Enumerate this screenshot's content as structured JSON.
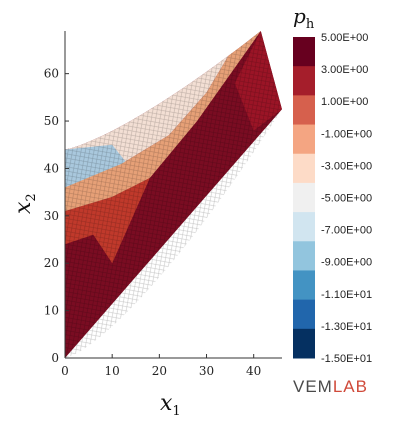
{
  "chart_data": {
    "type": "heatmap",
    "xlabel": "x",
    "xlabel_sub": "1",
    "ylabel": "x",
    "ylabel_sub": "2",
    "xlim": [
      0,
      46
    ],
    "ylim": [
      0,
      69
    ],
    "xticks": [
      0,
      10,
      20,
      30,
      40
    ],
    "yticks": [
      0,
      10,
      20,
      30,
      40,
      50,
      60
    ],
    "grid": false,
    "domain_vertices": [
      [
        0,
        0
      ],
      [
        46,
        52.5
      ],
      [
        41.5,
        69
      ],
      [
        0,
        44
      ]
    ],
    "colorbar": {
      "title": "p",
      "title_sub": "h",
      "placement": "right",
      "colors": [
        "#67001f",
        "#a51e2b",
        "#d6604d",
        "#f4a582",
        "#fddbc7",
        "#f0f0f0",
        "#d1e5f0",
        "#92c5de",
        "#4393c3",
        "#2166ac",
        "#053061"
      ],
      "labels": [
        "5.00E+00",
        "3.00E+00",
        "1.00E+00",
        "-1.00E+00",
        "-3.00E+00",
        "-5.00E+00",
        "-7.00E+00",
        "-9.00E+00",
        "-1.10E+01",
        "-1.30E+01",
        "-1.50E+01"
      ]
    }
  },
  "logo": {
    "part1": "VEM",
    "part2": "LAB"
  }
}
